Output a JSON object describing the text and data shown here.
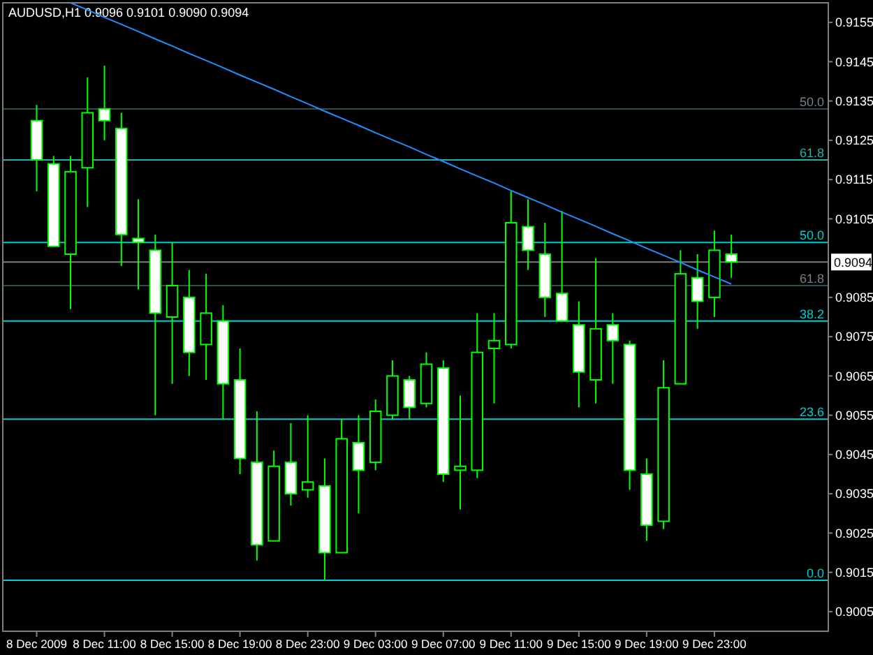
{
  "chart_data": {
    "type": "candlestick",
    "title": "AUDUSD,H1  0.9096 0.9101 0.9090 0.9094",
    "color": "#00ff00",
    "categories": [
      "8 Dec 2009",
      null,
      null,
      null,
      "8 Dec 11:00",
      null,
      null,
      null,
      "8 Dec 15:00",
      null,
      null,
      null,
      "8 Dec 19:00",
      null,
      null,
      null,
      "8 Dec 23:00",
      null,
      null,
      null,
      "9 Dec 03:00",
      null,
      null,
      null,
      "9 Dec 07:00",
      null,
      null,
      null,
      "9 Dec 11:00",
      null,
      null,
      null,
      "9 Dec 15:00",
      null,
      null,
      null,
      "9 Dec 19:00",
      null,
      null,
      null,
      "9 Dec 23:00",
      null
    ],
    "ohlc": [
      [
        0.913,
        0.9134,
        0.9112,
        0.912
      ],
      [
        0.9119,
        0.9121,
        0.9098,
        0.9098
      ],
      [
        0.9096,
        0.9121,
        0.9082,
        0.9117
      ],
      [
        0.9118,
        0.9141,
        0.9108,
        0.9132
      ],
      [
        0.9133,
        0.9144,
        0.9125,
        0.913
      ],
      [
        0.9128,
        0.9132,
        0.9093,
        0.9101
      ],
      [
        0.91,
        0.911,
        0.9087,
        0.9099
      ],
      [
        0.9097,
        0.9101,
        0.9055,
        0.9081
      ],
      [
        0.908,
        0.9099,
        0.9063,
        0.9088
      ],
      [
        0.9085,
        0.9092,
        0.9065,
        0.9071
      ],
      [
        0.9073,
        0.9091,
        0.9064,
        0.9081
      ],
      [
        0.9079,
        0.9083,
        0.9054,
        0.9063
      ],
      [
        0.9064,
        0.9072,
        0.904,
        0.9044
      ],
      [
        0.9043,
        0.9056,
        0.9018,
        0.9022
      ],
      [
        0.9023,
        0.9046,
        0.9023,
        0.9042
      ],
      [
        0.9043,
        0.9053,
        0.9032,
        0.9035
      ],
      [
        0.9036,
        0.9055,
        0.9034,
        0.9038
      ],
      [
        0.9037,
        0.9044,
        0.9013,
        0.902
      ],
      [
        0.902,
        0.9054,
        0.902,
        0.9049
      ],
      [
        0.9048,
        0.9055,
        0.903,
        0.9041
      ],
      [
        0.9043,
        0.9059,
        0.9041,
        0.9056
      ],
      [
        0.9055,
        0.9069,
        0.9054,
        0.9065
      ],
      [
        0.9064,
        0.9065,
        0.9054,
        0.9057
      ],
      [
        0.9058,
        0.9071,
        0.9057,
        0.9068
      ],
      [
        0.9067,
        0.9069,
        0.9038,
        0.904
      ],
      [
        0.9041,
        0.906,
        0.9031,
        0.9042
      ],
      [
        0.9041,
        0.9081,
        0.9039,
        0.9071
      ],
      [
        0.9072,
        0.9081,
        0.9058,
        0.9074
      ],
      [
        0.9073,
        0.9112,
        0.9072,
        0.9104
      ],
      [
        0.9103,
        0.911,
        0.9092,
        0.9097
      ],
      [
        0.9096,
        0.9104,
        0.908,
        0.9085
      ],
      [
        0.9086,
        0.9107,
        0.9079,
        0.9079
      ],
      [
        0.9078,
        0.9084,
        0.9057,
        0.9066
      ],
      [
        0.9064,
        0.9095,
        0.9058,
        0.9077
      ],
      [
        0.9078,
        0.9081,
        0.9063,
        0.9074
      ],
      [
        0.9073,
        0.9074,
        0.9036,
        0.9041
      ],
      [
        0.904,
        0.9044,
        0.9023,
        0.9027
      ],
      [
        0.9028,
        0.9069,
        0.9026,
        0.9062
      ],
      [
        0.9063,
        0.9097,
        0.9063,
        0.9091
      ],
      [
        0.909,
        0.9096,
        0.9077,
        0.9084
      ],
      [
        0.9085,
        0.9102,
        0.908,
        0.9097
      ],
      [
        0.9096,
        0.9101,
        0.909,
        0.9094
      ]
    ],
    "series": [
      {
        "type": "line",
        "color": "#1e90ff",
        "values": [
          null,
          null,
          0.916,
          0.91582,
          0.91563,
          0.91545,
          0.91527,
          0.91508,
          0.9149,
          0.91471,
          0.91453,
          0.91435,
          0.91416,
          0.91398,
          0.9138,
          0.91361,
          0.91343,
          0.91324,
          0.91306,
          0.91288,
          0.91269,
          0.91251,
          0.91233,
          0.91214,
          0.91196,
          0.91177,
          0.91159,
          0.91141,
          0.91122,
          0.91104,
          0.91086,
          0.91067,
          0.91049,
          0.91031,
          0.91012,
          0.90994,
          0.90975,
          0.90957,
          0.90939,
          0.9092,
          0.90902,
          0.90884
        ]
      }
    ],
    "ylim": [
      0.9,
      0.916
    ],
    "yticks": [
      0.9005,
      0.9015,
      0.9025,
      0.9035,
      0.9045,
      0.9055,
      0.9065,
      0.9075,
      0.9085,
      0.9105,
      0.9115,
      0.9125,
      0.9135,
      0.9145,
      0.9155
    ],
    "ref_lines": [
      {
        "axis": "y",
        "value": 0.9133,
        "color": "#2f4f4f"
      },
      {
        "axis": "y",
        "value": 0.912,
        "color": "#20b2aa"
      },
      {
        "axis": "y",
        "value": 0.9099,
        "color": "#00ced1"
      },
      {
        "axis": "y",
        "value": 0.9094,
        "label": "0.9094",
        "color": "#808080"
      },
      {
        "axis": "y",
        "value": 0.9088,
        "color": "#2f4f4f"
      },
      {
        "axis": "y",
        "value": 0.9079,
        "color": "#00ced1"
      },
      {
        "axis": "y",
        "value": 0.9054,
        "color": "#00ced1"
      },
      {
        "axis": "y",
        "value": 0.9013,
        "color": "#00ced1"
      }
    ],
    "annotations": [
      "50.0",
      "61.8",
      "50.0",
      "61.8",
      "38.2",
      "23.6",
      "0.0"
    ],
    "grid": false
  }
}
